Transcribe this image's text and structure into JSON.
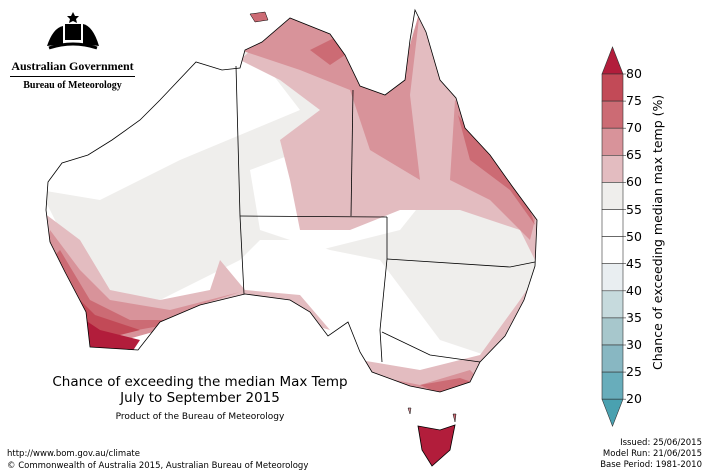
{
  "logo": {
    "line1": "Australian Government",
    "line2": "Bureau of Meteorology"
  },
  "title": {
    "main": "Chance of exceeding the median Max Temp",
    "period": "July to September 2015",
    "product": "Product of the Bureau of Meteorology"
  },
  "footer": {
    "url": "http://www.bom.gov.au/climate",
    "copyright": "© Commonwealth of Australia 2015, Australian Bureau of Meteorology"
  },
  "meta": {
    "issued": "Issued: 25/06/2015",
    "model_run": "Model Run: 21/06/2015",
    "base_period": "Base Period: 1981-2010"
  },
  "legend": {
    "label": "Chance of exceeding median max temp (%)",
    "ticks": [
      "80",
      "75",
      "70",
      "65",
      "60",
      "55",
      "50",
      "45",
      "40",
      "35",
      "30",
      "25",
      "20"
    ],
    "colors": [
      "#c24a57",
      "#cc6b74",
      "#d8939a",
      "#e3bcc0",
      "#efeeec",
      "#ffffff",
      "#ffffff",
      "#e9eef1",
      "#c6dadd",
      "#a7c7cc",
      "#88b7c2",
      "#68adbb"
    ],
    "over_color": "#b21d3b",
    "under_color": "#4aa1b0"
  }
}
